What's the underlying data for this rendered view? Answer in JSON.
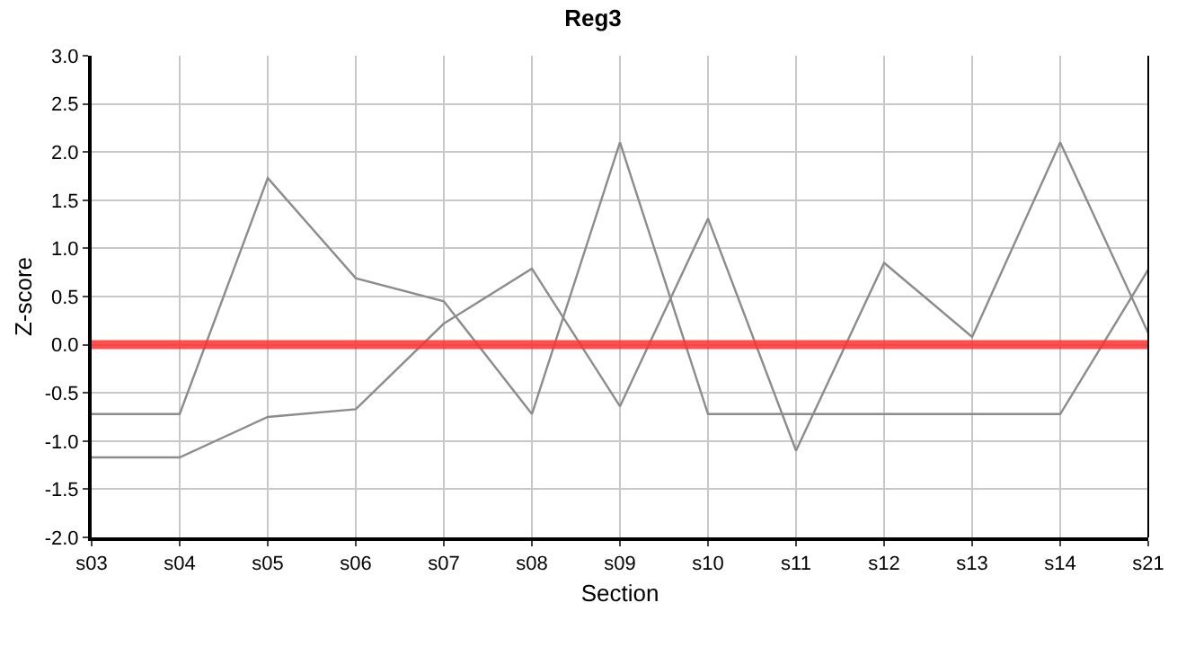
{
  "chart_data": {
    "type": "line",
    "title": "Reg3",
    "xlabel": "Section",
    "ylabel": "Z-score",
    "categories": [
      "s03",
      "s04",
      "s05",
      "s06",
      "s07",
      "s08",
      "s09",
      "s10",
      "s11",
      "s12",
      "s13",
      "s14",
      "s21"
    ],
    "series": [
      {
        "color": "#8c8c8c",
        "values": [
          -0.72,
          -0.72,
          1.73,
          0.69,
          0.45,
          -0.72,
          2.1,
          -0.72,
          -0.72,
          -0.72,
          -0.72,
          -0.72,
          0.78
        ]
      },
      {
        "color": "#8c8c8c",
        "values": [
          -1.17,
          -1.17,
          -0.75,
          -0.67,
          0.22,
          0.79,
          -0.64,
          1.31,
          -1.1,
          0.85,
          0.08,
          2.1,
          0.12
        ]
      }
    ],
    "ylim": [
      -2,
      3
    ],
    "yticks": [
      {
        "value": -2,
        "label": "-2.0"
      },
      {
        "value": -1.5,
        "label": "-1.5"
      },
      {
        "value": -1,
        "label": "-1.0"
      },
      {
        "value": -0.5,
        "label": "-0.5"
      },
      {
        "value": 0,
        "label": "0.0"
      },
      {
        "value": 0.5,
        "label": "0.5"
      },
      {
        "value": 1,
        "label": "1.0"
      },
      {
        "value": 1.5,
        "label": "1.5"
      },
      {
        "value": 2,
        "label": "2.0"
      },
      {
        "value": 2.5,
        "label": "2.5"
      },
      {
        "value": 3,
        "label": "3.0"
      }
    ],
    "ref_lines": [
      {
        "axis": "y",
        "value": 0,
        "color": "#ff3030"
      }
    ],
    "grid": true,
    "marker": "none",
    "line_style": "solid"
  }
}
